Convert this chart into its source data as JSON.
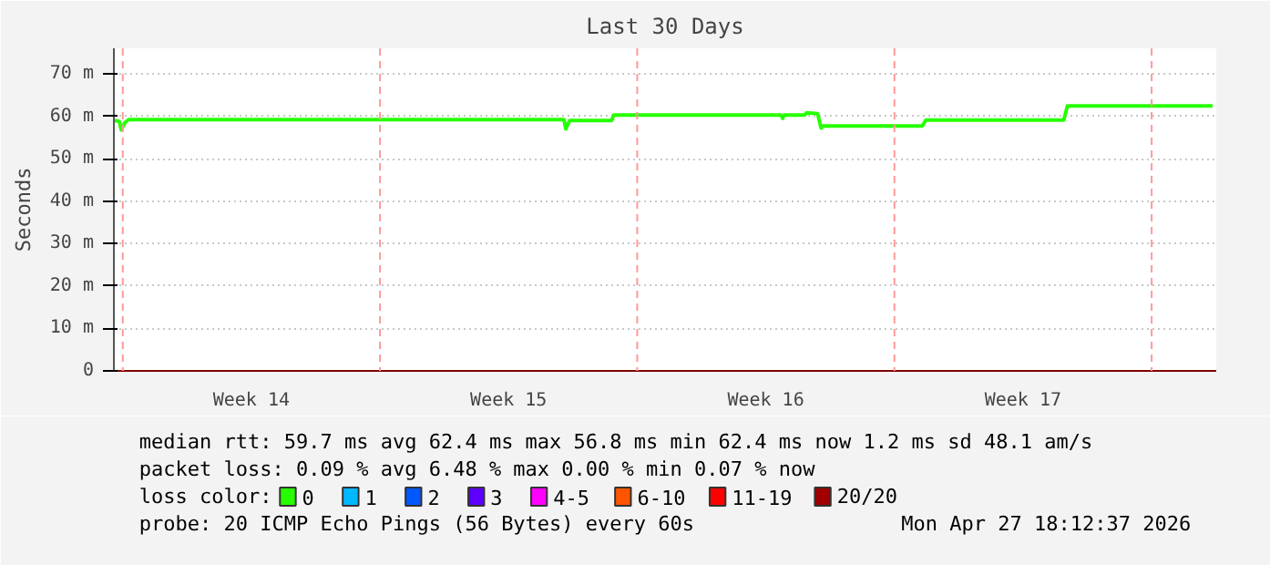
{
  "chart_data": {
    "type": "line",
    "title": "Last 30 Days",
    "ylabel": "Seconds",
    "xlim": [
      "2026-03-28T18:12",
      "2026-04-27T18:12"
    ],
    "xticks": [
      {
        "value": "2026-04-01T12:00",
        "label": "Week 14"
      },
      {
        "value": "2026-04-08T12:00",
        "label": "Week 15"
      },
      {
        "value": "2026-04-15T12:00",
        "label": "Week 16"
      },
      {
        "value": "2026-04-22T12:00",
        "label": "Week 17"
      }
    ],
    "ylim": [
      0,
      76
    ],
    "yticks": [
      {
        "value": 0,
        "label": "0"
      },
      {
        "value": 10,
        "label": "10 m"
      },
      {
        "value": 20,
        "label": "20 m"
      },
      {
        "value": 30,
        "label": "30 m"
      },
      {
        "value": 40,
        "label": "40 m"
      },
      {
        "value": 50,
        "label": "50 m"
      },
      {
        "value": 60,
        "label": "60 m"
      },
      {
        "value": 70,
        "label": "70 m"
      }
    ],
    "grid": "y",
    "legend": "bottom",
    "legend_title": "loss color:",
    "ref_lines": [
      {
        "axis": "x",
        "value": "2026-03-29",
        "color": "#ff9a9a",
        "line_style": "dashed"
      },
      {
        "axis": "x",
        "value": "2026-04-05",
        "color": "#ff9a9a",
        "line_style": "dashed"
      },
      {
        "axis": "x",
        "value": "2026-04-12",
        "color": "#ff9a9a",
        "line_style": "dashed"
      },
      {
        "axis": "x",
        "value": "2026-04-19",
        "color": "#ff9a9a",
        "line_style": "dashed"
      },
      {
        "axis": "x",
        "value": "2026-04-26",
        "color": "#ff9a9a",
        "line_style": "dashed"
      }
    ],
    "series": [
      {
        "name": "0",
        "color": "#26ff00",
        "x": [
          "2026-03-28T18:12",
          "2026-03-28T21:45",
          "2026-03-28T23:00",
          "2026-03-29T01:25",
          "2026-03-29T03:50",
          "2026-04-10T00:10",
          "2026-04-10T01:25",
          "2026-04-10T03:50",
          "2026-04-11T07:25",
          "2026-04-11T08:35",
          "2026-04-15T21:50",
          "2026-04-15T23:00",
          "2026-04-16T00:10",
          "2026-04-16T13:25",
          "2026-04-16T14:35",
          "2026-04-16T21:50",
          "2026-04-17T00:10",
          "2026-04-17T01:25",
          "2026-04-19T18:10",
          "2026-04-19T20:35",
          "2026-04-23T14:35",
          "2026-04-23T17:00",
          "2026-04-27T15:50"
        ],
        "values": [
          59.0,
          58.8,
          56.8,
          58.5,
          59.2,
          59.2,
          57.0,
          59.0,
          59.0,
          60.3,
          60.3,
          59.5,
          60.3,
          60.3,
          60.8,
          60.6,
          57.2,
          57.7,
          57.7,
          59.1,
          59.1,
          62.4,
          62.4
        ]
      },
      {
        "name": "1",
        "color": "#00b8ff"
      },
      {
        "name": "2",
        "color": "#0059ff"
      },
      {
        "name": "3",
        "color": "#5e00ff"
      },
      {
        "name": "4-5",
        "color": "#ff00fe"
      },
      {
        "name": "6-10",
        "color": "#ff5500"
      },
      {
        "name": "11-19",
        "color": "#ff0000"
      },
      {
        "name": "20/20",
        "color": "#a10000"
      }
    ],
    "annotations": [
      "median rtt:  59.7 ms avg  62.4 ms max  56.8 ms min  62.4 ms now  1.2 ms sd  48.1   am/s",
      "packet loss: 0.09 % avg  6.48 % max  0.00 % min  0.07 % now",
      "probe:       20 ICMP Echo Pings (56 Bytes) every 60s",
      "Mon Apr 27 18:12:37 2026"
    ]
  }
}
